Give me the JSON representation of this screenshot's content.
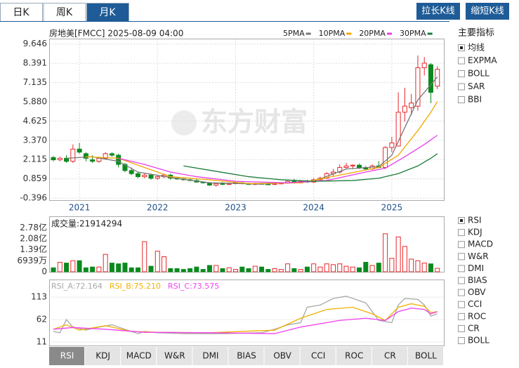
{
  "tabs": {
    "items": [
      "日K",
      "周K",
      "月K"
    ],
    "active": 2
  },
  "buttons": [
    "拉长K线",
    "缩短K线"
  ],
  "header": {
    "title": "房地美[FMCC] 2025-08-09 04:00"
  },
  "watermark": "东方财富",
  "main": {
    "type": "candlestick",
    "xlim": [
      -0.65,
      60
    ],
    "ylim": [
      -0.53,
      10.0
    ],
    "yticks": [
      9.646,
      8.391,
      7.135,
      5.88,
      4.625,
      3.37,
      2.115,
      0.859,
      -0.396
    ],
    "ytick_labels": [
      "9.646",
      "8.391",
      "7.135",
      "5.880",
      "4.625",
      "3.370",
      "2.115",
      "0.859",
      "-0.396"
    ],
    "xticks": [
      {
        "value": 4,
        "label": "2021"
      },
      {
        "value": 16,
        "label": "2022"
      },
      {
        "value": 28,
        "label": "2023"
      },
      {
        "value": 40,
        "label": "2024"
      },
      {
        "value": 52,
        "label": "2025"
      }
    ],
    "up_color": "#e8262a",
    "down_color": "#0a8a1e",
    "candles": [
      [
        2.25,
        2.35,
        2.0,
        2.1
      ],
      [
        2.1,
        2.3,
        2.0,
        2.2
      ],
      [
        2.2,
        2.4,
        1.9,
        2.0
      ],
      [
        2.0,
        3.1,
        1.9,
        2.8
      ],
      [
        2.8,
        3.2,
        2.5,
        2.6
      ],
      [
        2.5,
        2.6,
        2.0,
        2.2
      ],
      [
        2.1,
        2.4,
        1.9,
        2.0
      ],
      [
        2.0,
        2.3,
        1.9,
        2.2
      ],
      [
        2.2,
        2.6,
        2.1,
        2.5
      ],
      [
        2.5,
        2.6,
        2.3,
        2.4
      ],
      [
        2.4,
        2.5,
        1.6,
        1.8
      ],
      [
        1.8,
        1.9,
        1.3,
        1.4
      ],
      [
        1.4,
        1.6,
        1.1,
        1.2
      ],
      [
        1.2,
        1.3,
        0.9,
        1.0
      ],
      [
        1.0,
        1.2,
        0.9,
        1.1
      ],
      [
        1.1,
        1.2,
        0.8,
        0.9
      ],
      [
        0.9,
        1.1,
        0.8,
        1.0
      ],
      [
        1.0,
        1.2,
        0.9,
        1.1
      ],
      [
        1.1,
        1.2,
        0.8,
        0.9
      ],
      [
        0.9,
        1.0,
        0.8,
        0.85
      ],
      [
        0.85,
        0.95,
        0.75,
        0.8
      ],
      [
        0.8,
        0.9,
        0.7,
        0.75
      ],
      [
        0.75,
        0.85,
        0.6,
        0.65
      ],
      [
        0.65,
        0.7,
        0.55,
        0.6
      ],
      [
        0.6,
        0.65,
        0.4,
        0.45
      ],
      [
        0.45,
        0.6,
        0.35,
        0.55
      ],
      [
        0.55,
        0.65,
        0.45,
        0.5
      ],
      [
        0.5,
        0.6,
        0.45,
        0.55
      ],
      [
        0.55,
        0.65,
        0.5,
        0.6
      ],
      [
        0.6,
        0.65,
        0.5,
        0.55
      ],
      [
        0.55,
        0.6,
        0.45,
        0.5
      ],
      [
        0.5,
        0.6,
        0.45,
        0.55
      ],
      [
        0.55,
        0.6,
        0.5,
        0.52
      ],
      [
        0.52,
        0.6,
        0.48,
        0.5
      ],
      [
        0.5,
        0.58,
        0.45,
        0.55
      ],
      [
        0.55,
        0.62,
        0.5,
        0.58
      ],
      [
        0.58,
        0.8,
        0.55,
        0.7
      ],
      [
        0.7,
        0.85,
        0.55,
        0.6
      ],
      [
        0.6,
        0.75,
        0.55,
        0.7
      ],
      [
        0.7,
        0.8,
        0.6,
        0.65
      ],
      [
        0.65,
        0.9,
        0.6,
        0.8
      ],
      [
        0.8,
        1.0,
        0.7,
        0.9
      ],
      [
        0.9,
        1.3,
        0.85,
        1.2
      ],
      [
        1.2,
        1.5,
        1.0,
        1.3
      ],
      [
        1.3,
        1.8,
        1.2,
        1.6
      ],
      [
        1.6,
        1.9,
        1.5,
        1.7
      ],
      [
        1.7,
        1.8,
        1.5,
        1.75
      ],
      [
        1.75,
        1.85,
        1.5,
        1.6
      ],
      [
        1.6,
        1.7,
        1.4,
        1.5
      ],
      [
        1.5,
        1.8,
        1.45,
        1.7
      ],
      [
        1.7,
        2.0,
        1.55,
        1.6
      ],
      [
        1.6,
        3.0,
        1.5,
        2.9
      ],
      [
        2.9,
        3.6,
        2.6,
        3.2
      ],
      [
        3.0,
        6.5,
        3.0,
        5.2
      ],
      [
        5.2,
        6.8,
        4.6,
        5.6
      ],
      [
        5.5,
        6.4,
        5.0,
        5.8
      ],
      [
        5.6,
        8.9,
        5.3,
        8.1
      ],
      [
        8.1,
        8.8,
        7.6,
        8.4
      ],
      [
        8.3,
        8.4,
        5.8,
        6.5
      ],
      [
        6.9,
        8.2,
        6.7,
        8.0
      ]
    ],
    "ma": [
      {
        "name": "5PMA",
        "color": "#777777",
        "points": [
          [
            2,
            2.2
          ],
          [
            6,
            2.3
          ],
          [
            10,
            2.0
          ],
          [
            13,
            1.3
          ],
          [
            18,
            0.95
          ],
          [
            24,
            0.6
          ],
          [
            32,
            0.52
          ],
          [
            40,
            0.7
          ],
          [
            45,
            1.5
          ],
          [
            50,
            1.65
          ],
          [
            52,
            2.4
          ],
          [
            54,
            4.2
          ],
          [
            56,
            6.0
          ],
          [
            58,
            7.0
          ],
          [
            59,
            7.5
          ]
        ]
      },
      {
        "name": "10PMA",
        "color": "#f0a800",
        "points": [
          [
            5,
            2.3
          ],
          [
            10,
            2.2
          ],
          [
            14,
            1.6
          ],
          [
            18,
            1.0
          ],
          [
            24,
            0.8
          ],
          [
            30,
            0.55
          ],
          [
            38,
            0.6
          ],
          [
            44,
            1.1
          ],
          [
            50,
            1.6
          ],
          [
            53,
            2.4
          ],
          [
            56,
            4.0
          ],
          [
            58,
            5.2
          ],
          [
            59,
            5.9
          ]
        ]
      },
      {
        "name": "20PMA",
        "color": "#e83ce8",
        "points": [
          [
            10,
            2.2
          ],
          [
            14,
            1.8
          ],
          [
            18,
            1.3
          ],
          [
            22,
            1.0
          ],
          [
            28,
            0.7
          ],
          [
            36,
            0.6
          ],
          [
            42,
            0.75
          ],
          [
            48,
            1.3
          ],
          [
            51,
            1.55
          ],
          [
            54,
            2.3
          ],
          [
            57,
            3.1
          ],
          [
            59,
            3.7
          ]
        ]
      },
      {
        "name": "30PMA",
        "color": "#1a7a3a",
        "points": [
          [
            20,
            1.7
          ],
          [
            25,
            1.35
          ],
          [
            30,
            1.0
          ],
          [
            35,
            0.8
          ],
          [
            40,
            0.7
          ],
          [
            46,
            0.75
          ],
          [
            50,
            0.9
          ],
          [
            53,
            1.2
          ],
          [
            56,
            1.7
          ],
          [
            58,
            2.2
          ],
          [
            59,
            2.5
          ]
        ]
      }
    ]
  },
  "volume": {
    "label": "成交量:21914294",
    "ylim": [
      0,
      3.5
    ],
    "yticks": [
      {
        "value": 2.78,
        "label": "2.78亿"
      },
      {
        "value": 2.08,
        "label": "2.08亿"
      },
      {
        "value": 1.39,
        "label": "1.39亿"
      },
      {
        "value": 0.6939,
        "label": "6939万"
      },
      0
    ],
    "values": [
      0.25,
      0.6,
      0.55,
      0.7,
      0.7,
      0.25,
      0.3,
      0.3,
      1.1,
      0.55,
      0.5,
      0.55,
      0.25,
      0.25,
      1.9,
      0.35,
      1.3,
      0.95,
      0.2,
      0.2,
      0.15,
      0.2,
      0.3,
      0.15,
      0.4,
      0.4,
      0.2,
      0.25,
      0.15,
      0.3,
      0.2,
      0.35,
      0.3,
      0.15,
      0.2,
      0.15,
      0.5,
      0.2,
      0.15,
      0.3,
      0.5,
      0.3,
      0.5,
      0.45,
      0.5,
      0.35,
      0.3,
      0.25,
      0.6,
      0.4,
      0.55,
      2.4,
      0.85,
      2.2,
      1.6,
      0.8,
      0.7,
      0.55,
      0.5,
      0.21914294
    ]
  },
  "rsi": {
    "ylim": [
      3,
      153
    ],
    "yticks": [
      113,
      62,
      11
    ],
    "series": [
      {
        "legend": "RSI_A:72.164",
        "color": "#a8a8a8",
        "points": [
          [
            0,
            35
          ],
          [
            1,
            32
          ],
          [
            2,
            62
          ],
          [
            3,
            45
          ],
          [
            5,
            38
          ],
          [
            7,
            45
          ],
          [
            9,
            50
          ],
          [
            11,
            40
          ],
          [
            13,
            30
          ],
          [
            14,
            35
          ],
          [
            16,
            32
          ],
          [
            20,
            30
          ],
          [
            26,
            30
          ],
          [
            32,
            32
          ],
          [
            34,
            40
          ],
          [
            36,
            50
          ],
          [
            38,
            55
          ],
          [
            39,
            90
          ],
          [
            41,
            95
          ],
          [
            43,
            110
          ],
          [
            45,
            115
          ],
          [
            47,
            105
          ],
          [
            48,
            100
          ],
          [
            50,
            60
          ],
          [
            52,
            55
          ],
          [
            53,
            95
          ],
          [
            54,
            110
          ],
          [
            56,
            108
          ],
          [
            57,
            95
          ],
          [
            58,
            70
          ],
          [
            59,
            75
          ]
        ]
      },
      {
        "legend": "RSI_B:75.210",
        "color": "#f0b000",
        "points": [
          [
            0,
            40
          ],
          [
            2,
            50
          ],
          [
            4,
            38
          ],
          [
            8,
            48
          ],
          [
            12,
            35
          ],
          [
            16,
            33
          ],
          [
            24,
            32
          ],
          [
            34,
            38
          ],
          [
            38,
            65
          ],
          [
            42,
            85
          ],
          [
            46,
            90
          ],
          [
            49,
            75
          ],
          [
            51,
            60
          ],
          [
            53,
            90
          ],
          [
            55,
            98
          ],
          [
            57,
            92
          ],
          [
            58,
            78
          ],
          [
            59,
            80
          ]
        ]
      },
      {
        "legend": "RSI_C:73.575",
        "color": "#f040f0",
        "points": [
          [
            0,
            40
          ],
          [
            3,
            44
          ],
          [
            8,
            40
          ],
          [
            14,
            33
          ],
          [
            24,
            32
          ],
          [
            34,
            30
          ],
          [
            38,
            45
          ],
          [
            44,
            60
          ],
          [
            48,
            65
          ],
          [
            51,
            60
          ],
          [
            53,
            80
          ],
          [
            55,
            88
          ],
          [
            57,
            85
          ],
          [
            58,
            75
          ],
          [
            59,
            80
          ]
        ]
      }
    ]
  },
  "main_indicators": {
    "title": "主要指标",
    "items": [
      "均线",
      "EXPMA",
      "BOLL",
      "SAR",
      "BBI"
    ],
    "checked": 0
  },
  "sub_indicators": {
    "items": [
      "RSI",
      "KDJ",
      "MACD",
      "W&R",
      "DMI",
      "BIAS",
      "OBV",
      "CCI",
      "ROC",
      "CR",
      "BOLL"
    ],
    "checked": 0
  },
  "bottom_tabs": {
    "items": [
      "RSI",
      "KDJ",
      "MACD",
      "W&R",
      "DMI",
      "BIAS",
      "OBV",
      "CCI",
      "ROC",
      "CR",
      "BOLL"
    ],
    "active": 0
  }
}
